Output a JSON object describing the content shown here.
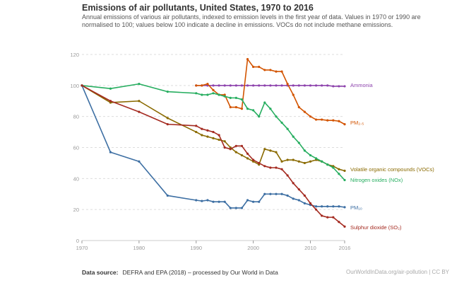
{
  "header": {
    "title": "Emissions of air pollutants, United States, 1970 to 2016",
    "subtitle": "Annual emissions of various air pollutants, indexed to emission levels in the first year of data. Values in 1970 or 1990 are normalised to 100; values below 100 indicate a decline in emissions. VOCs do not include methane emissions."
  },
  "footer": {
    "source_label": "Data source:",
    "source_text": "DEFRA and EPA (2018) – processed by Our World in Data",
    "url": "OurWorldInData.org/air-pollution | CC BY"
  },
  "chart_data": {
    "type": "line",
    "title": "Emissions of air pollutants, United States, 1970 to 2016",
    "xlim": [
      1970,
      2016
    ],
    "ylim": [
      0,
      120
    ],
    "x_ticks": [
      1970,
      1980,
      1990,
      2000,
      2010,
      2016
    ],
    "y_ticks": [
      0,
      20,
      40,
      60,
      80,
      100,
      120
    ],
    "grid": "horizontal-dashed",
    "legend": "labels at line ends (right)",
    "series": [
      {
        "name": "Ammonia",
        "color": "#8e44ad",
        "x": [
          1990,
          1991,
          1992,
          1993,
          1994,
          1995,
          1996,
          1997,
          1998,
          1999,
          2000,
          2001,
          2002,
          2003,
          2004,
          2005,
          2006,
          2007,
          2008,
          2009,
          2010,
          2011,
          2012,
          2013,
          2014,
          2015,
          2016
        ],
        "y": [
          100,
          100,
          100,
          100,
          100,
          100,
          100,
          100,
          100,
          100,
          100,
          100,
          100,
          100,
          100,
          100,
          100,
          100,
          100,
          100,
          100,
          100,
          100,
          100,
          99.5,
          99.5,
          99.5
        ]
      },
      {
        "name": "PM₂.₅",
        "color": "#d35400",
        "x": [
          1990,
          1991,
          1992,
          1993,
          1994,
          1995,
          1996,
          1997,
          1998,
          1999,
          2000,
          2001,
          2002,
          2003,
          2004,
          2005,
          2006,
          2007,
          2008,
          2009,
          2010,
          2011,
          2012,
          2013,
          2014,
          2015,
          2016
        ],
        "y": [
          100,
          100,
          101,
          97,
          94,
          94,
          86,
          86,
          85,
          117,
          112,
          112,
          110,
          110,
          109,
          109,
          101,
          94,
          86,
          83,
          80,
          78,
          78,
          77.5,
          77.5,
          77,
          75
        ]
      },
      {
        "name": "Volatile organic compounds (VOCs)",
        "color": "#8a6a00",
        "x": [
          1970,
          1975,
          1980,
          1985,
          1990,
          1991,
          1992,
          1993,
          1994,
          1995,
          1996,
          1997,
          1998,
          1999,
          2000,
          2001,
          2002,
          2003,
          2004,
          2005,
          2006,
          2007,
          2008,
          2009,
          2010,
          2011,
          2012,
          2013,
          2014,
          2015,
          2016
        ],
        "y": [
          100,
          89,
          90,
          79,
          70,
          68,
          67,
          66,
          65,
          64,
          60,
          57,
          55,
          53,
          51,
          49,
          59,
          58,
          57,
          51,
          52,
          52,
          51,
          50,
          51,
          52,
          51,
          49,
          48,
          46,
          45
        ]
      },
      {
        "name": "Nitrogen oxides (NOx)",
        "color": "#27ae60",
        "x": [
          1970,
          1975,
          1980,
          1985,
          1990,
          1991,
          1992,
          1993,
          1994,
          1995,
          1996,
          1997,
          1998,
          1999,
          2000,
          2001,
          2002,
          2003,
          2004,
          2005,
          2006,
          2007,
          2008,
          2009,
          2010,
          2011,
          2012,
          2013,
          2014,
          2015,
          2016
        ],
        "y": [
          100,
          98,
          101,
          96,
          95,
          94,
          94,
          95,
          94,
          93,
          92,
          92,
          91,
          85,
          84,
          80,
          89,
          85,
          80,
          76,
          72,
          67,
          63,
          58,
          55,
          53,
          51,
          49,
          47,
          43,
          39
        ]
      },
      {
        "name": "PM₁₀",
        "color": "#3d6fa3",
        "x": [
          1970,
          1975,
          1980,
          1985,
          1990,
          1991,
          1992,
          1993,
          1994,
          1995,
          1996,
          1997,
          1998,
          1999,
          2000,
          2001,
          2002,
          2003,
          2004,
          2005,
          2006,
          2007,
          2008,
          2009,
          2010,
          2011,
          2012,
          2013,
          2014,
          2015,
          2016
        ],
        "y": [
          100,
          57,
          51,
          29,
          26,
          25.5,
          26,
          25,
          25,
          25,
          21,
          21,
          21,
          26,
          25,
          25,
          30,
          30,
          30,
          30,
          29,
          27,
          26,
          24,
          23,
          22,
          22,
          22,
          22,
          22,
          21.5
        ]
      },
      {
        "name": "Sulphur dioxide (SO₂)",
        "color": "#a42a20",
        "x": [
          1970,
          1975,
          1980,
          1985,
          1990,
          1991,
          1992,
          1993,
          1994,
          1995,
          1996,
          1997,
          1998,
          1999,
          2000,
          2001,
          2002,
          2003,
          2004,
          2005,
          2006,
          2007,
          2008,
          2009,
          2010,
          2011,
          2012,
          2013,
          2014,
          2015,
          2016
        ],
        "y": [
          100,
          90,
          83,
          75,
          74,
          72,
          71,
          70,
          68,
          60,
          59,
          61,
          61,
          56,
          52,
          50,
          48,
          47,
          47,
          46,
          42,
          37,
          33,
          29,
          24,
          20,
          16,
          15,
          15,
          12,
          9
        ]
      }
    ]
  }
}
